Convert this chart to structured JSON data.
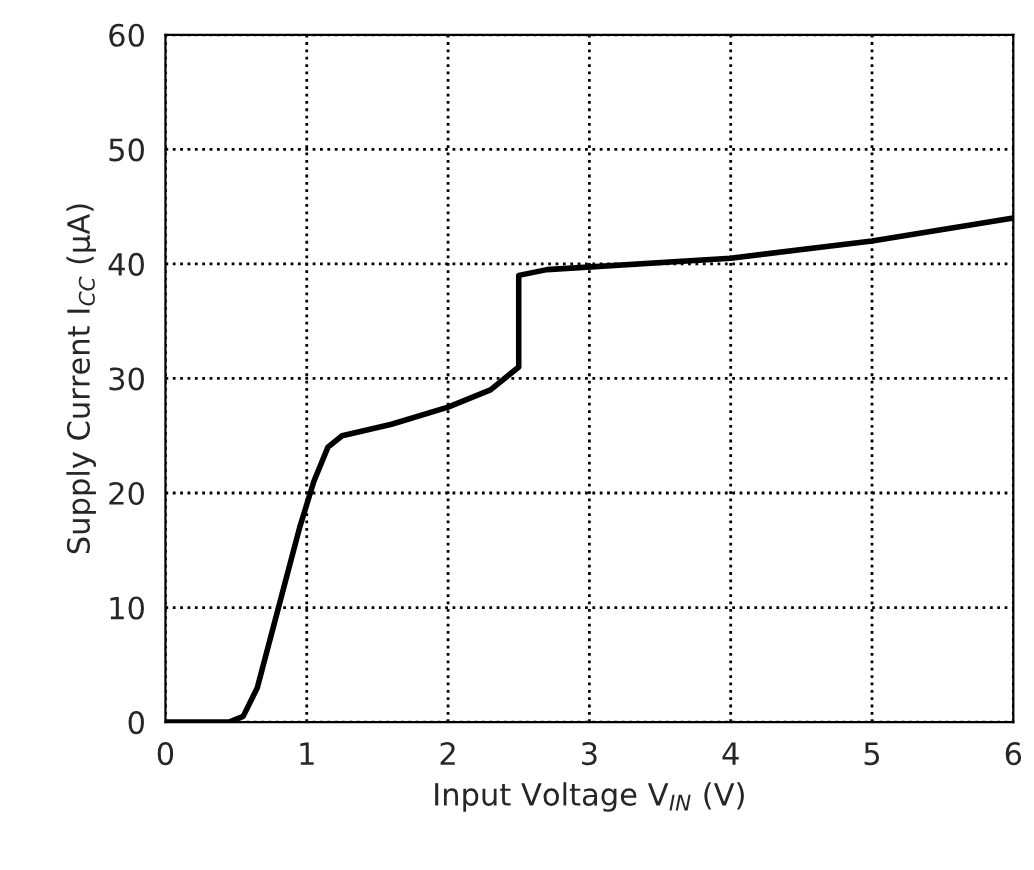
{
  "chart_data": {
    "type": "line",
    "xlabel": "Input Voltage V$_{IN}$ (V)",
    "ylabel": "Supply Current I$_{CC}$ (μA)",
    "series": [
      {
        "color": "#000000",
        "x": [
          0,
          0.45,
          0.55,
          0.65,
          0.8,
          0.95,
          1.05,
          1.15,
          1.25,
          1.6,
          2.0,
          2.3,
          2.45,
          2.5,
          2.5,
          2.7,
          4,
          5,
          6
        ],
        "values": [
          0,
          0,
          0.5,
          3,
          10,
          17,
          21,
          24,
          25,
          26,
          27.5,
          29,
          30.5,
          31,
          39,
          39.5,
          40.5,
          42,
          44
        ]
      }
    ],
    "xlim": [
      0,
      6
    ],
    "xticks": [
      0,
      1,
      2,
      3,
      4,
      5,
      6
    ],
    "ylim": [
      0,
      60
    ],
    "yticks": [
      0,
      10,
      20,
      30,
      40,
      50,
      60
    ],
    "grid": true,
    "line_style": "solid",
    "marker": "none"
  }
}
